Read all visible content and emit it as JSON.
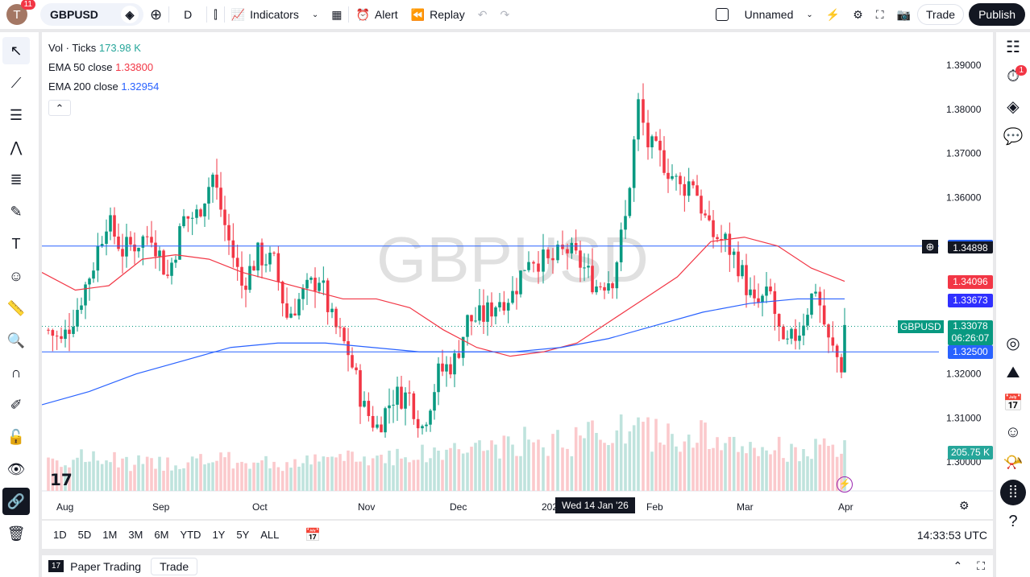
{
  "topbar": {
    "avatar_letter": "T",
    "notifications": "11",
    "symbol": "GBPUSD",
    "interval": "D",
    "indicators": "Indicators",
    "alert": "Alert",
    "replay": "Replay",
    "layout_name": "Unnamed",
    "trade": "Trade",
    "publish": "Publish"
  },
  "legend": {
    "vol_label": "Vol · Ticks",
    "vol_value": "173.98 K",
    "ema50_label": "EMA 50 close",
    "ema50_value": "1.33800",
    "ema200_label": "EMA 200 close",
    "ema200_value": "1.32954"
  },
  "watermark": "GBPUSD",
  "colors": {
    "up": "#089981",
    "down": "#f23645",
    "ema50": "#f23645",
    "ema200": "#2962ff",
    "hline": "#2962ff"
  },
  "price_axis": {
    "ticks": [
      "1.39000",
      "1.38000",
      "1.37000",
      "1.36000",
      "1.32000",
      "1.31000",
      "1.30000"
    ],
    "labels": {
      "hline_top": "1.34898",
      "ema50": "1.34096",
      "ema200": "1.33673",
      "last": "1.33078",
      "countdown": "06:26:07",
      "symbol_tag": "GBPUSD",
      "hline_bottom": "1.32500",
      "volume": "205.75 K"
    }
  },
  "time_axis": {
    "ticks": [
      "Aug",
      "Sep",
      "Oct",
      "Nov",
      "Dec",
      "2026",
      "Feb",
      "Mar",
      "Apr"
    ],
    "crosshair": "Wed 14 Jan '26"
  },
  "ranges": [
    "1D",
    "5D",
    "1M",
    "3M",
    "6M",
    "YTD",
    "1Y",
    "5Y",
    "ALL"
  ],
  "clock": "14:33:53 UTC",
  "bottom": {
    "paper_trading": "Paper Trading",
    "trade": "Trade"
  },
  "right_notifications": "1",
  "chart_data": {
    "type": "candlestick",
    "ylim": [
      1.295,
      1.395
    ],
    "hlines": [
      1.34898,
      1.325
    ],
    "points": [
      [
        "2025-07-28",
        1.33
      ],
      [
        "2025-08-01",
        1.327
      ],
      [
        "2025-08-06",
        1.335
      ],
      [
        "2025-08-11",
        1.345
      ],
      [
        "2025-08-15",
        1.355
      ],
      [
        "2025-08-20",
        1.348
      ],
      [
        "2025-08-25",
        1.35
      ],
      [
        "2025-08-29",
        1.352
      ],
      [
        "2025-09-03",
        1.342
      ],
      [
        "2025-09-08",
        1.355
      ],
      [
        "2025-09-12",
        1.356
      ],
      [
        "2025-09-17",
        1.365
      ],
      [
        "2025-09-22",
        1.35
      ],
      [
        "2025-09-26",
        1.34
      ],
      [
        "2025-10-01",
        1.347
      ],
      [
        "2025-10-06",
        1.345
      ],
      [
        "2025-10-10",
        1.333
      ],
      [
        "2025-10-15",
        1.338
      ],
      [
        "2025-10-20",
        1.342
      ],
      [
        "2025-10-24",
        1.332
      ],
      [
        "2025-10-29",
        1.325
      ],
      [
        "2025-11-03",
        1.312
      ],
      [
        "2025-11-07",
        1.308
      ],
      [
        "2025-11-12",
        1.315
      ],
      [
        "2025-11-17",
        1.315
      ],
      [
        "2025-11-21",
        1.308
      ],
      [
        "2025-11-26",
        1.32
      ],
      [
        "2025-12-01",
        1.323
      ],
      [
        "2025-12-05",
        1.332
      ],
      [
        "2025-12-10",
        1.333
      ],
      [
        "2025-12-15",
        1.337
      ],
      [
        "2025-12-19",
        1.338
      ],
      [
        "2025-12-24",
        1.347
      ],
      [
        "2025-12-30",
        1.345
      ],
      [
        "2026-01-05",
        1.348
      ],
      [
        "2026-01-09",
        1.345
      ],
      [
        "2026-01-14",
        1.34
      ],
      [
        "2026-01-19",
        1.342
      ],
      [
        "2026-01-23",
        1.355
      ],
      [
        "2026-01-27",
        1.381
      ],
      [
        "2026-01-30",
        1.372
      ],
      [
        "2026-02-04",
        1.368
      ],
      [
        "2026-02-09",
        1.362
      ],
      [
        "2026-02-13",
        1.364
      ],
      [
        "2026-02-18",
        1.352
      ],
      [
        "2026-02-23",
        1.35
      ],
      [
        "2026-02-27",
        1.345
      ],
      [
        "2026-03-04",
        1.335
      ],
      [
        "2026-03-09",
        1.338
      ],
      [
        "2026-03-13",
        1.325
      ],
      [
        "2026-03-18",
        1.33
      ],
      [
        "2026-03-23",
        1.34
      ],
      [
        "2026-03-27",
        1.327
      ],
      [
        "2026-03-31",
        1.322
      ],
      [
        "2026-04-01",
        1.331
      ]
    ],
    "ema50": [
      1.343,
      1.339,
      1.34,
      1.346,
      1.347,
      1.346,
      1.343,
      1.341,
      1.339,
      1.337,
      1.337,
      1.335,
      1.33,
      1.326,
      1.324,
      1.325,
      1.327,
      1.332,
      1.337,
      1.342,
      1.35,
      1.351,
      1.349,
      1.344,
      1.341
    ],
    "ema200": [
      1.313,
      1.316,
      1.32,
      1.323,
      1.326,
      1.327,
      1.327,
      1.326,
      1.325,
      1.325,
      1.325,
      1.326,
      1.328,
      1.331,
      1.334,
      1.336,
      1.337,
      1.337
    ],
    "volume_level_K": [
      150,
      130,
      140,
      130,
      150,
      170,
      200,
      230,
      280,
      260,
      200,
      190
    ]
  }
}
